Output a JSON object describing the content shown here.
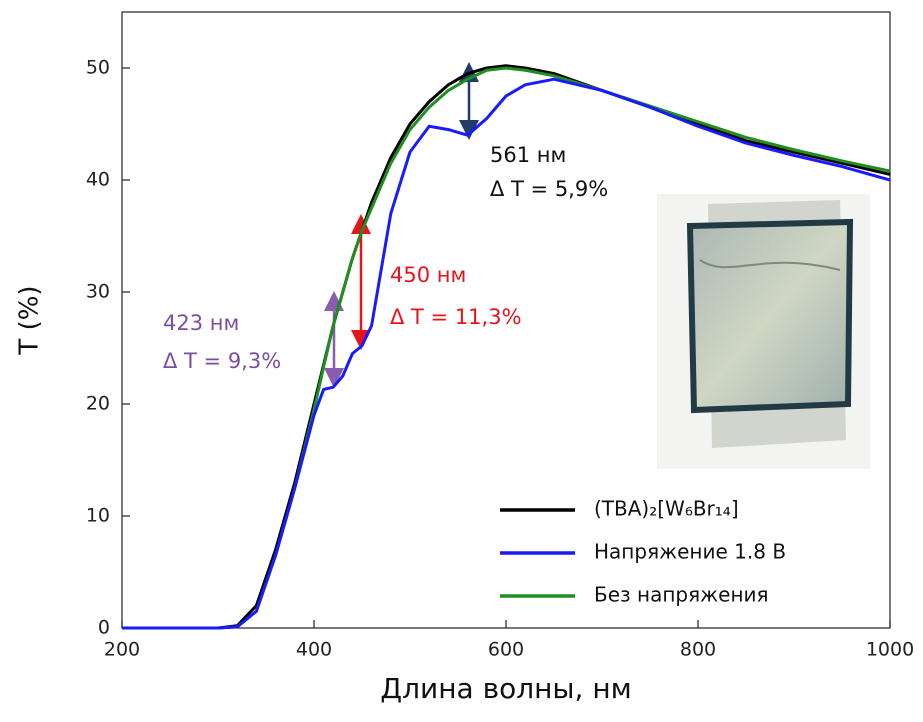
{
  "chart_data": {
    "type": "line",
    "x_label": "Длина волны, нм",
    "y_label": "T (%)",
    "xlim": [
      200,
      1000
    ],
    "ylim": [
      0,
      55
    ],
    "xticks": [
      200,
      400,
      600,
      800,
      1000
    ],
    "yticks": [
      0,
      10,
      20,
      30,
      40,
      50
    ],
    "x": [
      200,
      300,
      320,
      340,
      360,
      380,
      400,
      410,
      420,
      430,
      440,
      450,
      460,
      480,
      500,
      520,
      540,
      560,
      580,
      600,
      620,
      650,
      700,
      750,
      800,
      850,
      900,
      950,
      1000
    ],
    "series": [
      {
        "name": "(TBA)₂[W₆Br₁₄]",
        "color": "#000000",
        "values": [
          0,
          0,
          0.2,
          2,
          7,
          13,
          20,
          23.5,
          27,
          30,
          33,
          35.5,
          38,
          42,
          45,
          47,
          48.5,
          49.5,
          50,
          50.2,
          50,
          49.5,
          48,
          46.5,
          45,
          43.5,
          42.5,
          41.5,
          40.5
        ]
      },
      {
        "name": "Напряжение 1.8 В",
        "color": "#1a1aff",
        "values": [
          0,
          0,
          0.1,
          1.5,
          6.5,
          12.5,
          19,
          21.3,
          21.5,
          22.5,
          24.5,
          25.2,
          27,
          37,
          42.5,
          44.8,
          44.5,
          44,
          45.5,
          47.5,
          48.5,
          49,
          48,
          46.5,
          44.8,
          43.3,
          42.2,
          41.2,
          40
        ]
      },
      {
        "name": "Без напряжения",
        "color": "#1f8f1f",
        "values": [
          0,
          0,
          0.1,
          1.5,
          6.5,
          12.5,
          19.5,
          23.3,
          27,
          30,
          33,
          35.5,
          37.5,
          41.5,
          44.5,
          46.5,
          48,
          49,
          49.8,
          50,
          49.8,
          49.3,
          48,
          46.6,
          45.2,
          43.8,
          42.7,
          41.7,
          40.8
        ]
      }
    ],
    "annotations": [
      {
        "text": "561 нм",
        "color": "#111111"
      },
      {
        "text": "Δ T = 5,9%",
        "color": "#111111"
      },
      {
        "text": "450 нм",
        "color": "#e8141b"
      },
      {
        "text": "Δ T = 11,3%",
        "color": "#e8141b"
      },
      {
        "text": "423 нм",
        "color": "#7b4fa0"
      },
      {
        "text": "Δ T = 9,3%",
        "color": "#7b4fa0"
      }
    ],
    "legend": "lower right"
  }
}
